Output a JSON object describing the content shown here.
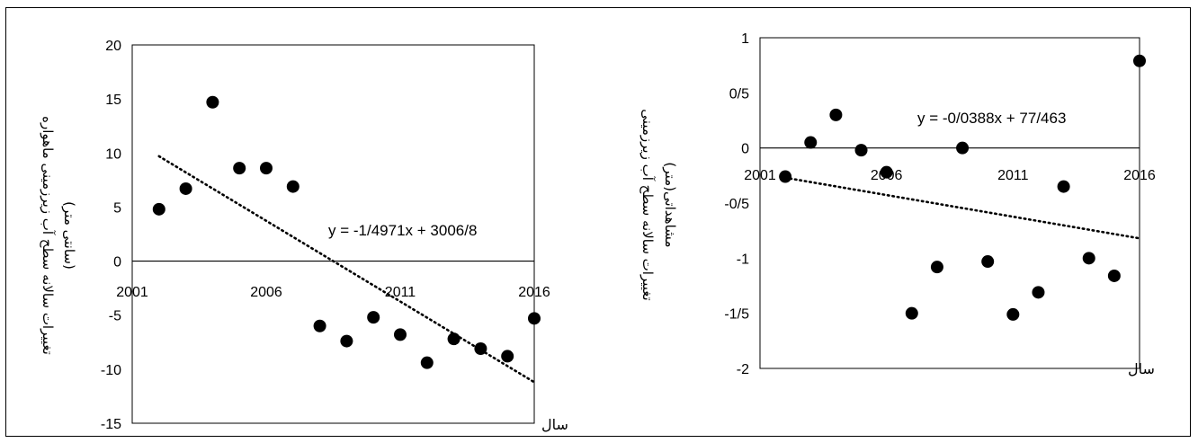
{
  "chart_data": [
    {
      "type": "scatter",
      "title": "",
      "ylabel_lines": [
        "تغییرات سالانه سطح آب زیرزمینی ماهواره",
        "(سانتی متر)"
      ],
      "xlabel": "سال",
      "xlim": [
        2001,
        2016
      ],
      "ylim": [
        -15,
        20
      ],
      "x_ticks": [
        "2001",
        "2006",
        "2011",
        "2016"
      ],
      "y_ticks": [
        "20",
        "15",
        "10",
        "5",
        "0",
        "-5",
        "-10",
        "-15"
      ],
      "trendline_equation": "y = -1/4971x + 3006/8",
      "trendline": {
        "x_start": 2002,
        "y_start": 9.7,
        "x_end": 2016,
        "y_end": -11.2
      },
      "grid": false,
      "legend": "none",
      "series": [
        {
          "x": [
            2002,
            2003,
            2004,
            2005,
            2006,
            2007,
            2008,
            2009,
            2010,
            2011,
            2012,
            2013,
            2014,
            2015,
            2016
          ],
          "y": [
            4.8,
            6.7,
            14.7,
            8.6,
            8.6,
            6.9,
            -6.0,
            -7.4,
            -5.2,
            -6.8,
            -9.4,
            -7.2,
            -8.1,
            -8.8,
            -5.3
          ]
        }
      ]
    },
    {
      "type": "scatter",
      "title": "",
      "ylabel_lines": [
        "تغییرات سالانه سطح آب زیرزمینی",
        "مشاهداتی(متر)"
      ],
      "xlabel": "سال",
      "xlim": [
        2001,
        2016
      ],
      "ylim": [
        -2,
        1
      ],
      "x_ticks": [
        "2001",
        "2006",
        "2011",
        "2016"
      ],
      "y_ticks": [
        "1",
        "0/5",
        "0",
        "-0/5",
        "-1",
        "-1/5",
        "-2"
      ],
      "trendline_equation": "y = -0/0388x + 77/463",
      "trendline": {
        "x_start": 2002,
        "y_start": -0.27,
        "x_end": 2016,
        "y_end": -0.82
      },
      "grid": false,
      "legend": "none",
      "series": [
        {
          "x": [
            2002,
            2003,
            2004,
            2005,
            2006,
            2007,
            2008,
            2009,
            2010,
            2011,
            2012,
            2013,
            2014,
            2015,
            2016
          ],
          "y": [
            -0.26,
            0.05,
            0.3,
            -0.02,
            -0.22,
            -1.5,
            -1.08,
            0.0,
            -1.03,
            -1.51,
            -1.31,
            -0.35,
            -1.0,
            -1.16,
            0.79
          ]
        }
      ]
    }
  ]
}
